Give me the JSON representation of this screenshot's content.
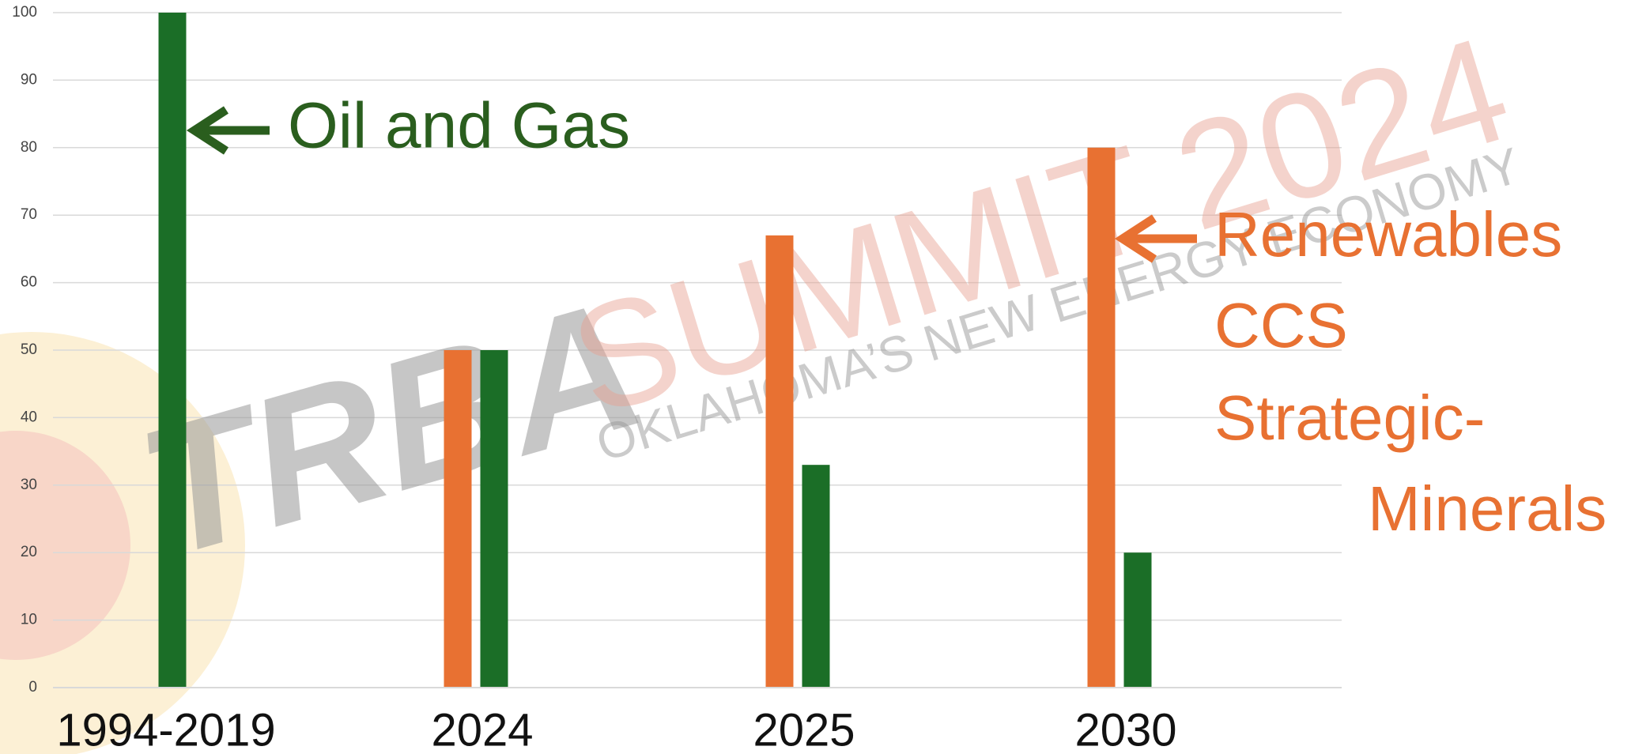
{
  "chart_data": {
    "type": "bar",
    "categories": [
      "1994-2019",
      "2024",
      "2025",
      "2030"
    ],
    "series": [
      {
        "color": "#e87132",
        "values": [
          null,
          50,
          67,
          80
        ]
      },
      {
        "color": "#1b6e27",
        "values": [
          100,
          50,
          33,
          20
        ]
      }
    ],
    "ylim": [
      0,
      100
    ],
    "yticks": [
      0,
      10,
      20,
      30,
      40,
      50,
      60,
      70,
      80,
      90,
      100
    ],
    "grid": true,
    "annotations": [
      {
        "text": "Oil and Gas",
        "color": "#2a5e1e"
      },
      {
        "text": "Renewables",
        "color": "#e87132"
      },
      {
        "text": "CCS",
        "color": "#e87132"
      },
      {
        "text": "Strategic-",
        "color": "#e87132"
      },
      {
        "text": "Minerals",
        "color": "#e87132"
      }
    ],
    "watermark": [
      "TRBA",
      "SUMMIT 2024",
      "OKLAHOMA’S NEW ENERGY ECONOMY"
    ]
  }
}
